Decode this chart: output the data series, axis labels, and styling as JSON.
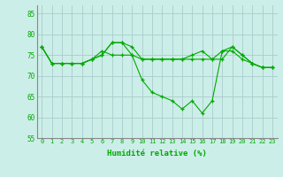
{
  "xlabel": "Humidité relative (%)",
  "xlim": [
    -0.5,
    23.5
  ],
  "ylim": [
    55,
    87
  ],
  "yticks": [
    55,
    60,
    65,
    70,
    75,
    80,
    85
  ],
  "xticks": [
    0,
    1,
    2,
    3,
    4,
    5,
    6,
    7,
    8,
    9,
    10,
    11,
    12,
    13,
    14,
    15,
    16,
    17,
    18,
    19,
    20,
    21,
    22,
    23
  ],
  "bg_color": "#cceee8",
  "grid_color": "#aacccc",
  "line_color": "#00aa00",
  "series1": [
    77,
    73,
    73,
    73,
    73,
    74,
    75,
    78,
    78,
    77,
    74,
    74,
    74,
    74,
    74,
    74,
    74,
    74,
    74,
    77,
    75,
    73,
    72,
    72
  ],
  "series2": [
    77,
    73,
    73,
    73,
    73,
    74,
    76,
    75,
    75,
    75,
    74,
    74,
    74,
    74,
    74,
    75,
    76,
    74,
    76,
    76,
    74,
    73,
    72,
    72
  ],
  "series3": [
    77,
    73,
    73,
    73,
    73,
    74,
    75,
    78,
    78,
    75,
    69,
    66,
    65,
    64,
    62,
    64,
    61,
    64,
    76,
    77,
    75,
    73,
    72,
    72
  ],
  "xtick_fontsize": 5.0,
  "ytick_fontsize": 5.5,
  "xlabel_fontsize": 6.5
}
